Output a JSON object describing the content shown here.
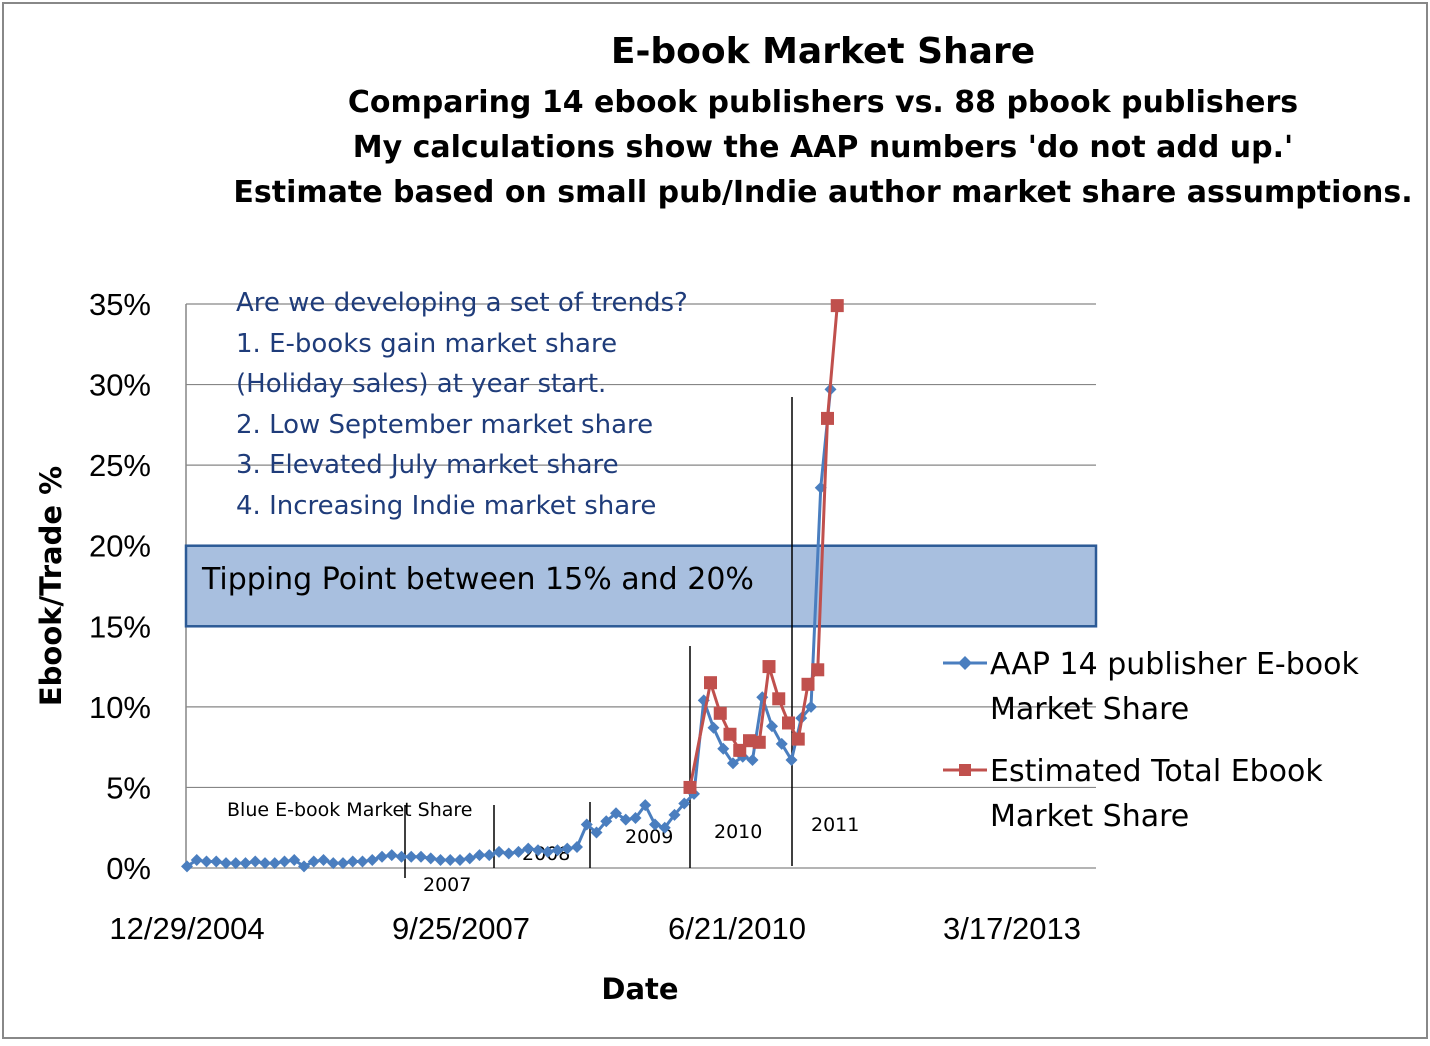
{
  "chart_data": {
    "type": "line",
    "title": "E-book Market Share",
    "subtitles": [
      "Comparing 14 ebook publishers vs. 88 pbook publishers",
      "My calculations show the AAP numbers 'do not add up.'",
      "Estimate based on small pub/Indie author market share assumptions."
    ],
    "xlabel": "Date",
    "ylabel": "Ebook/Trade %",
    "ylim": [
      0,
      35
    ],
    "y_ticks": [
      "0%",
      "5%",
      "10%",
      "15%",
      "20%",
      "25%",
      "30%",
      "35%"
    ],
    "x_ticks": [
      "12/29/2004",
      "9/25/2007",
      "6/21/2010",
      "3/17/2013"
    ],
    "grid": true,
    "notes": [
      "Are we developing a set of trends?",
      "1.  E-books gain market share",
      "(Holiday sales) at year start.",
      "2.  Low September market share",
      "3.  Elevated July market share",
      "4.  Increasing Indie market share"
    ],
    "tipping_band": {
      "low": 15,
      "high": 20,
      "label": "Tipping Point between 15% and 20%"
    },
    "annotations": {
      "blue_label": "Blue E-book Market Share",
      "years": [
        "2007",
        "2008",
        "2009",
        "2010",
        "2011"
      ]
    },
    "series": [
      {
        "name": "AAP 14 publisher E-book Market Share",
        "legend_lines": [
          "AAP 14 publisher E-book",
          "Market Share"
        ],
        "color": "#4a7ebf",
        "marker": "diamond",
        "values": [
          0.1,
          0.5,
          0.4,
          0.4,
          0.3,
          0.3,
          0.3,
          0.4,
          0.3,
          0.3,
          0.4,
          0.5,
          0.1,
          0.4,
          0.5,
          0.3,
          0.3,
          0.4,
          0.4,
          0.5,
          0.7,
          0.8,
          0.7,
          0.7,
          0.7,
          0.6,
          0.5,
          0.5,
          0.5,
          0.6,
          0.8,
          0.8,
          1.0,
          0.9,
          1.0,
          1.2,
          1.1,
          1.0,
          1.1,
          1.2,
          1.3,
          2.7,
          2.2,
          2.9,
          3.4,
          3.0,
          3.1,
          3.9,
          2.7,
          2.5,
          3.3,
          4.0,
          4.6,
          10.4,
          8.7,
          7.4,
          6.5,
          6.9,
          6.7,
          10.6,
          8.8,
          7.7,
          6.7,
          9.3,
          10.0,
          23.6,
          29.7
        ]
      },
      {
        "name": "Estimated Total Ebook Market Share",
        "legend_lines": [
          "Estimated Total Ebook",
          "Market Share"
        ],
        "color": "#c0504d",
        "marker": "square",
        "values": [
          5.0,
          11.5,
          9.6,
          8.3,
          7.3,
          7.9,
          7.8,
          12.5,
          10.5,
          9.0,
          8.0,
          11.4,
          12.3,
          27.9,
          34.9
        ]
      }
    ]
  }
}
